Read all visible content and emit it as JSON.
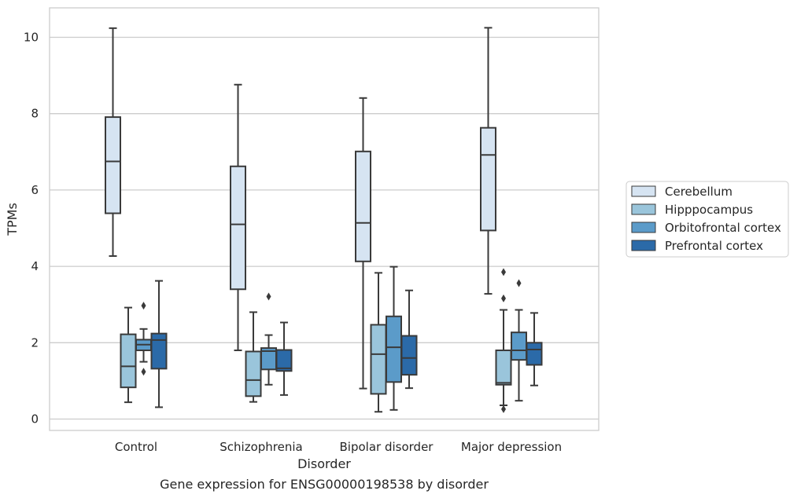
{
  "chart_data": {
    "type": "box",
    "caption": "Gene expression for ENSG00000198538 by disorder",
    "xlabel": "Disorder",
    "ylabel": "TPMs",
    "ylim": [
      -0.3,
      10.8
    ],
    "yticks": [
      0,
      2,
      4,
      6,
      8,
      10
    ],
    "grid": "horizontal",
    "legend_position": "right",
    "categories": [
      "Control",
      "Schizophrenia",
      "Bipolar disorder",
      "Major depression"
    ],
    "series": [
      {
        "name": "Cerebellum",
        "color": "#d6e4f2",
        "boxes": [
          {
            "whisker_low": 4.27,
            "q1": 5.39,
            "median": 6.75,
            "q3": 7.91,
            "whisker_high": 10.24,
            "outliers": []
          },
          {
            "whisker_low": 1.8,
            "q1": 3.4,
            "median": 5.1,
            "q3": 6.62,
            "whisker_high": 8.76,
            "outliers": []
          },
          {
            "whisker_low": 0.8,
            "q1": 4.13,
            "median": 5.14,
            "q3": 7.01,
            "whisker_high": 8.41,
            "outliers": []
          },
          {
            "whisker_low": 3.28,
            "q1": 4.94,
            "median": 6.92,
            "q3": 7.63,
            "whisker_high": 10.25,
            "outliers": []
          }
        ]
      },
      {
        "name": "Hipppocampus",
        "color": "#9ac5db",
        "boxes": [
          {
            "whisker_low": 0.44,
            "q1": 0.83,
            "median": 1.38,
            "q3": 2.22,
            "whisker_high": 2.92,
            "outliers": []
          },
          {
            "whisker_low": 0.45,
            "q1": 0.6,
            "median": 1.02,
            "q3": 1.77,
            "whisker_high": 2.8,
            "outliers": []
          },
          {
            "whisker_low": 0.19,
            "q1": 0.66,
            "median": 1.7,
            "q3": 2.47,
            "whisker_high": 3.83,
            "outliers": []
          },
          {
            "whisker_low": 0.36,
            "q1": 0.9,
            "median": 0.95,
            "q3": 1.8,
            "whisker_high": 2.86,
            "outliers": [
              0.26,
              3.16,
              3.85
            ]
          }
        ]
      },
      {
        "name": "Orbitofrontal cortex",
        "color": "#5b9bc9",
        "boxes": [
          {
            "whisker_low": 1.5,
            "q1": 1.8,
            "median": 1.95,
            "q3": 2.08,
            "whisker_high": 2.36,
            "outliers": [
              1.24,
              2.97
            ]
          },
          {
            "whisker_low": 0.9,
            "q1": 1.3,
            "median": 1.78,
            "q3": 1.86,
            "whisker_high": 2.2,
            "outliers": [
              3.21
            ]
          },
          {
            "whisker_low": 0.24,
            "q1": 0.97,
            "median": 1.88,
            "q3": 2.69,
            "whisker_high": 3.99,
            "outliers": []
          },
          {
            "whisker_low": 0.48,
            "q1": 1.55,
            "median": 1.8,
            "q3": 2.27,
            "whisker_high": 2.86,
            "outliers": [
              3.56
            ]
          }
        ]
      },
      {
        "name": "Prefrontal cortex",
        "color": "#2b6aa8",
        "boxes": [
          {
            "whisker_low": 0.31,
            "q1": 1.32,
            "median": 2.07,
            "q3": 2.24,
            "whisker_high": 3.62,
            "outliers": []
          },
          {
            "whisker_low": 0.63,
            "q1": 1.26,
            "median": 1.33,
            "q3": 1.81,
            "whisker_high": 2.53,
            "outliers": []
          },
          {
            "whisker_low": 0.81,
            "q1": 1.16,
            "median": 1.6,
            "q3": 2.18,
            "whisker_high": 3.37,
            "outliers": []
          },
          {
            "whisker_low": 0.88,
            "q1": 1.42,
            "median": 1.82,
            "q3": 2.0,
            "whisker_high": 2.78,
            "outliers": []
          }
        ]
      }
    ]
  }
}
